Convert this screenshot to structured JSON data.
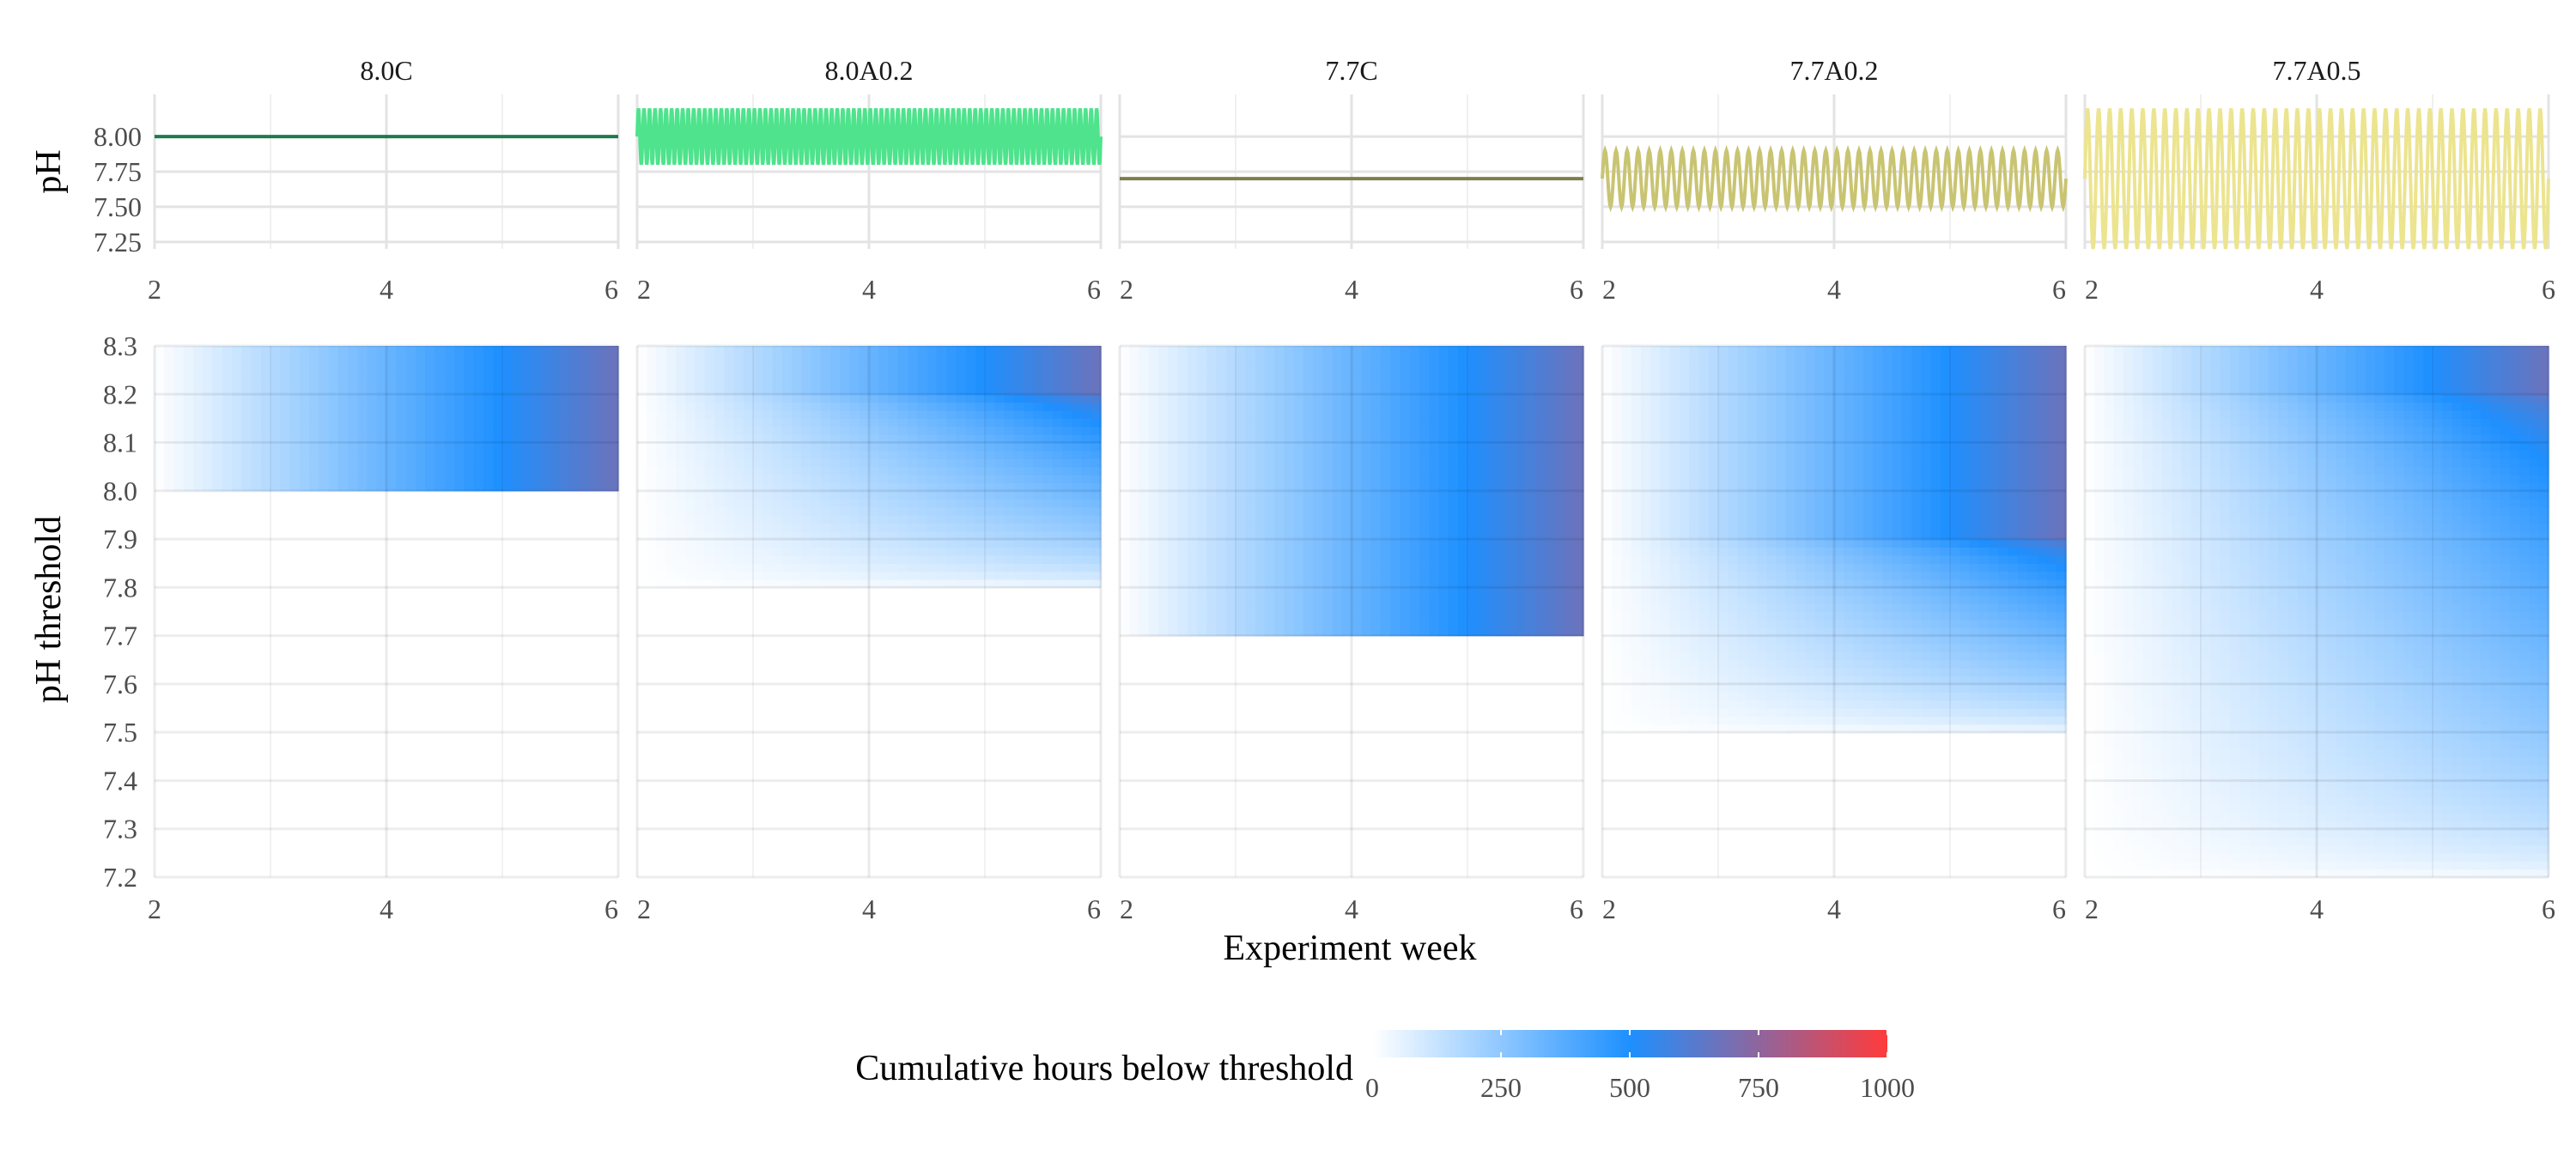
{
  "chart_data": {
    "type": "heatmap",
    "facet_labels": [
      "8.0C",
      "8.0A0.2",
      "7.7C",
      "7.7A0.2",
      "7.7A0.5"
    ],
    "x_label": "Experiment week",
    "x_ticks": [
      2,
      4,
      6
    ],
    "x_range": [
      2,
      6
    ],
    "top_panel": {
      "type": "line",
      "ylabel": "pH",
      "y_ticks": [
        "7.25",
        "7.50",
        "7.75",
        "8.00"
      ],
      "y_range": [
        7.2,
        8.3
      ],
      "series": [
        {
          "facet": "8.0C",
          "mean": 8.0,
          "amplitude": 0.0,
          "cycles": 0,
          "color": "#1f7a4d"
        },
        {
          "facet": "8.0A0.2",
          "mean": 8.0,
          "amplitude": 0.2,
          "cycles": 84,
          "color": "#4ee38c"
        },
        {
          "facet": "7.7C",
          "mean": 7.7,
          "amplitude": 0.0,
          "cycles": 0,
          "color": "#7d7d4e"
        },
        {
          "facet": "7.7A0.2",
          "mean": 7.7,
          "amplitude": 0.2,
          "cycles": 42,
          "color": "#c9c472"
        },
        {
          "facet": "7.7A0.5",
          "mean": 7.7,
          "amplitude": 0.5,
          "cycles": 42,
          "color": "#ece48f"
        }
      ]
    },
    "bottom_panel": {
      "type": "heatmap",
      "ylabel": "pH threshold",
      "y_ticks": [
        "7.2",
        "7.3",
        "7.4",
        "7.5",
        "7.6",
        "7.7",
        "7.8",
        "7.9",
        "8.0",
        "8.1",
        "8.2",
        "8.3"
      ],
      "y_range": [
        7.2,
        8.3
      ],
      "x_ticks": [
        2,
        4,
        6
      ],
      "value_meaning": "cumulative hours below threshold",
      "panels": [
        {
          "facet": "8.0C",
          "mean": 8.0,
          "amplitude": 0.0,
          "cycles": 0
        },
        {
          "facet": "8.0A0.2",
          "mean": 8.0,
          "amplitude": 0.2,
          "cycles": 84
        },
        {
          "facet": "7.7C",
          "mean": 7.7,
          "amplitude": 0.0,
          "cycles": 0
        },
        {
          "facet": "7.7A0.2",
          "mean": 7.7,
          "amplitude": 0.2,
          "cycles": 42
        },
        {
          "facet": "7.7A0.5",
          "mean": 7.7,
          "amplitude": 0.5,
          "cycles": 42
        }
      ],
      "hours_per_week": 168
    },
    "legend": {
      "title": "Cumulative hours below threshold",
      "position": "bottom",
      "ticks": [
        0,
        250,
        500,
        750,
        1000
      ],
      "range": [
        0,
        1000
      ],
      "colors": [
        "#ffffff",
        "#1e90ff",
        "#ff3b3b"
      ]
    },
    "grid": true
  }
}
